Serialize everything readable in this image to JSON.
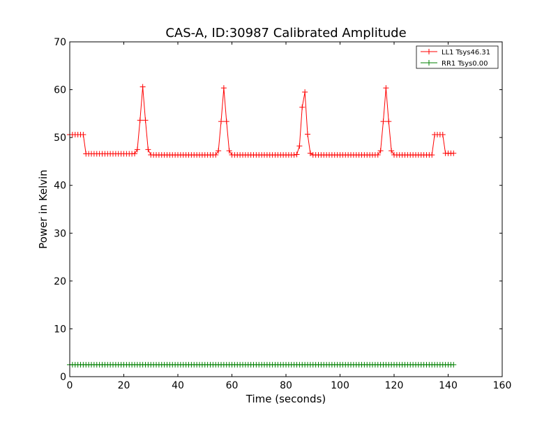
{
  "chart_data": {
    "type": "line",
    "title": "CAS-A, ID:30987 Calibrated Amplitude",
    "xlabel": "Time (seconds)",
    "ylabel": "Power in Kelvin",
    "xlim": [
      0,
      160
    ],
    "ylim": [
      0,
      70
    ],
    "xticks": [
      0,
      20,
      40,
      60,
      80,
      100,
      120,
      140,
      160
    ],
    "yticks": [
      0,
      10,
      20,
      30,
      40,
      50,
      60,
      70
    ],
    "grid": false,
    "legend_position": "top-right",
    "marker": "+",
    "sample_interval": 1.0,
    "series": [
      {
        "name": "LL1 Tsys46.31",
        "color": "#ff0000",
        "x": [],
        "y": []
      },
      {
        "name": "RR1 Tsys0.00",
        "color": "#008000",
        "x": [],
        "y": []
      }
    ]
  }
}
